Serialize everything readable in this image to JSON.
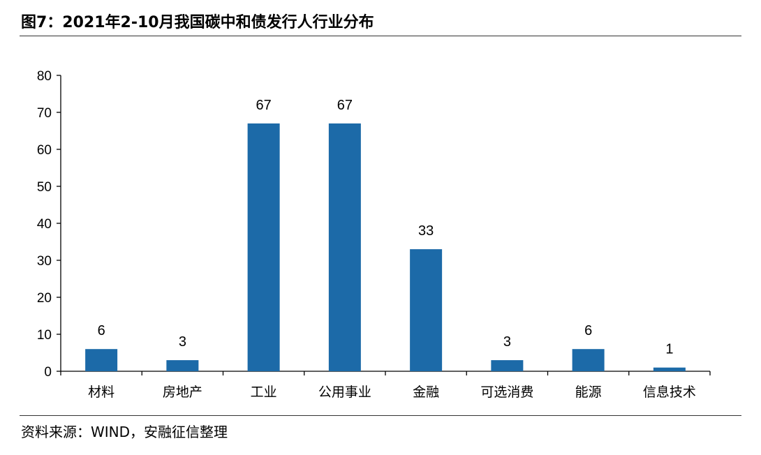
{
  "figure": {
    "title": "图7：2021年2-10月我国碳中和债发行人行业分布",
    "source": "资料来源：WIND，安融征信整理"
  },
  "chart_data": {
    "type": "bar",
    "categories": [
      "材料",
      "房地产",
      "工业",
      "公用事业",
      "金融",
      "可选消费",
      "能源",
      "信息技术"
    ],
    "values": [
      6,
      3,
      67,
      67,
      33,
      3,
      6,
      1
    ],
    "ylim": [
      0,
      80
    ],
    "yticks": [
      0,
      10,
      20,
      30,
      40,
      50,
      60,
      70,
      80
    ],
    "grid": false,
    "legend": "none",
    "data_labels": true,
    "bar_color": "#1c6aa8"
  }
}
